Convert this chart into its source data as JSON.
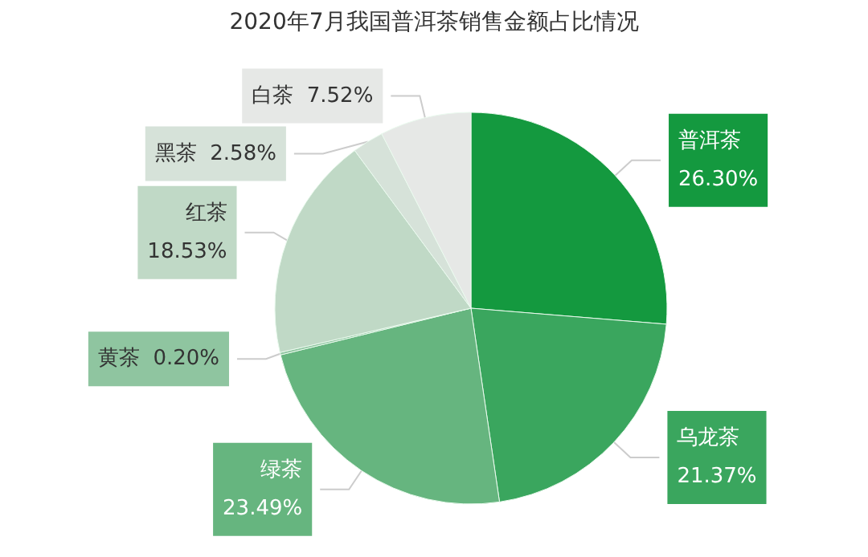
{
  "chart_data": {
    "type": "pie",
    "title": "2020年7月我国普洱茶销售金额占比情况",
    "categories": [
      "普洱茶",
      "乌龙茶",
      "绿茶",
      "黄茶",
      "红茶",
      "黑茶",
      "白茶"
    ],
    "values": [
      26.3,
      21.37,
      23.49,
      0.2,
      18.53,
      2.58,
      7.52
    ],
    "value_labels": [
      "26.30%",
      "21.37%",
      "23.49%",
      "0.20%",
      "18.53%",
      "2.58%",
      "7.52%"
    ],
    "colors": [
      "#14993f",
      "#3aa65e",
      "#66b57f",
      "#8fc5a0",
      "#c0d9c6",
      "#d6e2d9",
      "#e6e8e6"
    ],
    "legend": false
  }
}
